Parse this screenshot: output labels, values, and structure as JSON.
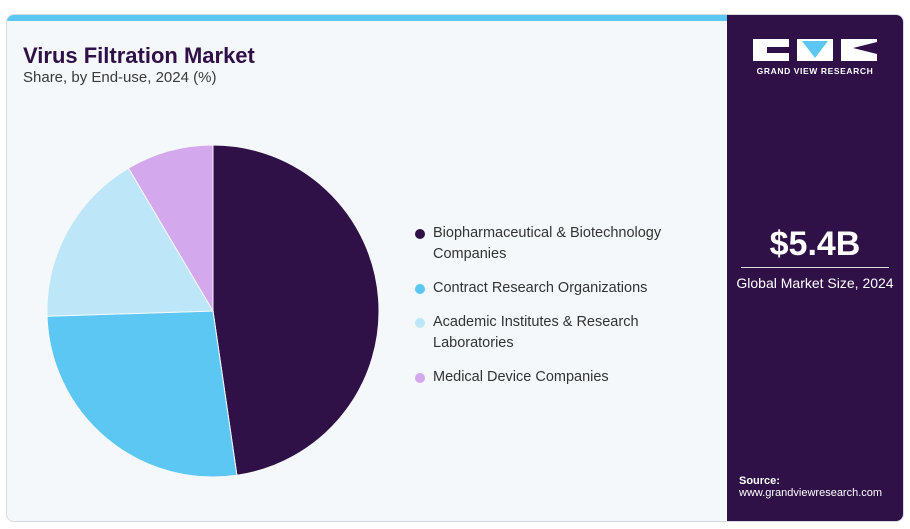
{
  "header": {
    "title": "Virus Filtration Market",
    "subtitle": "Share, by End-use, 2024 (%)"
  },
  "chart_data": {
    "type": "pie",
    "categories": [
      "Biopharmaceutical & Biotechnology Companies",
      "Contract Research Organizations",
      "Academic Institutes & Research Laboratories",
      "Medical Device Companies"
    ],
    "values": [
      47.7,
      26.8,
      17.0,
      8.5
    ],
    "colors": [
      "#2f1047",
      "#5bc7f2",
      "#bde7f8",
      "#d4a8ec"
    ],
    "start_angle_deg": 0,
    "direction": "clockwise",
    "legend": "right"
  },
  "legend": {
    "items": [
      "Biopharmaceutical & Biotechnology Companies",
      "Contract Research Organizations",
      "Academic Institutes & Research Laboratories",
      "Medical Device Companies"
    ]
  },
  "sidebar": {
    "brand": "GRAND VIEW RESEARCH",
    "kpi_value": "$5.4B",
    "kpi_label": "Global Market Size, 2024",
    "source_label": "Source:",
    "source_url": "www.grandviewresearch.com"
  },
  "colors": {
    "accent_bar": "#5bc7f2",
    "sidebar_bg": "#2f1047",
    "panel_bg": "#f4f8fb"
  }
}
